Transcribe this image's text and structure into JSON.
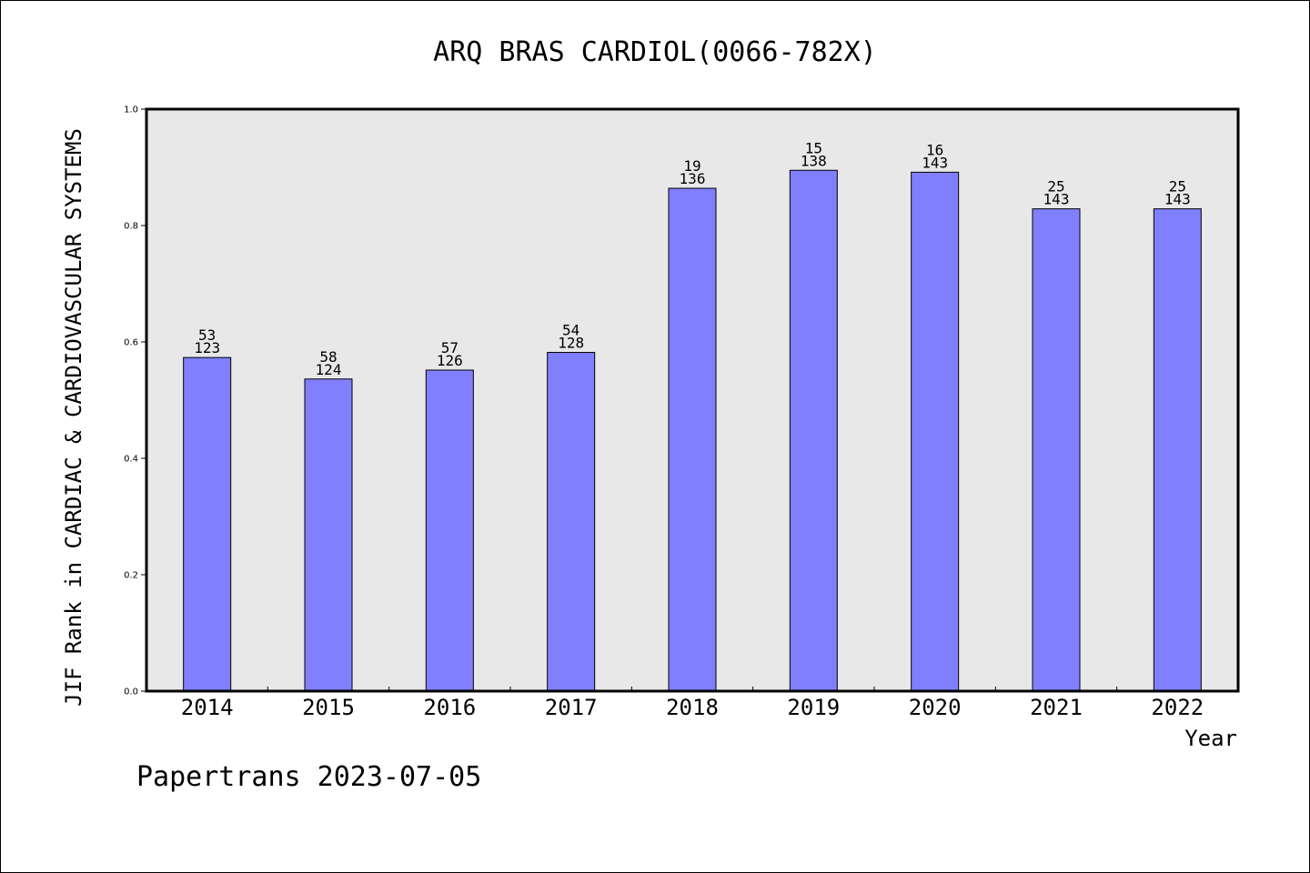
{
  "chart_data": {
    "type": "bar",
    "title": "ARQ BRAS CARDIOL(0066-782X)",
    "xlabel": "Year",
    "ylabel": "JIF Rank in CARDIAC & CARDIOVASCULAR SYSTEMS",
    "ylim": [
      0,
      1.0
    ],
    "yticks": [
      "0.0",
      "0.2",
      "0.4",
      "0.6",
      "0.8",
      "1.0"
    ],
    "categories": [
      "2014",
      "2015",
      "2016",
      "2017",
      "2018",
      "2019",
      "2020",
      "2021",
      "2022"
    ],
    "values": [
      0.5732,
      0.5363,
      0.5516,
      0.582,
      0.864,
      0.8949,
      0.8916,
      0.8287,
      0.8287
    ],
    "bar_labels": [
      {
        "rank": "53",
        "total": "123"
      },
      {
        "rank": "58",
        "total": "124"
      },
      {
        "rank": "57",
        "total": "126"
      },
      {
        "rank": "54",
        "total": "128"
      },
      {
        "rank": "19",
        "total": "136"
      },
      {
        "rank": "15",
        "total": "138"
      },
      {
        "rank": "16",
        "total": "143"
      },
      {
        "rank": "25",
        "total": "143"
      },
      {
        "rank": "25",
        "total": "143"
      }
    ],
    "grid": false,
    "colors": {
      "bar": "#8080ff",
      "plot_background": "#e8e8e8"
    }
  },
  "footer": "Papertrans 2023-07-05"
}
